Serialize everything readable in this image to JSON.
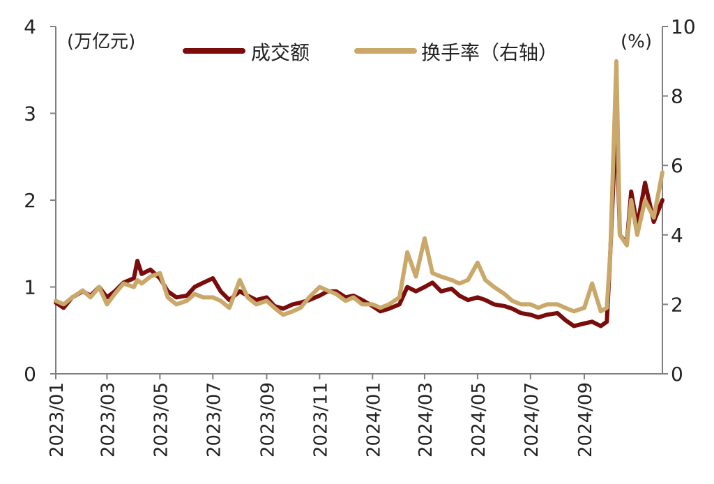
{
  "chart_data": {
    "type": "line",
    "left_unit": "(万亿元)",
    "right_unit": "(%)",
    "y_left_lim": [
      0,
      4
    ],
    "y_right_lim": [
      0,
      10
    ],
    "y_left_ticks": [
      "0",
      "1",
      "2",
      "3",
      "4"
    ],
    "y_right_ticks": [
      "0",
      "2",
      "4",
      "6",
      "8",
      "10"
    ],
    "x_ticks": [
      "2023/01",
      "2023/03",
      "2023/05",
      "2023/07",
      "2023/09",
      "2023/11",
      "2024/01",
      "2024/03",
      "2024/05",
      "2024/07",
      "2024/09"
    ],
    "x_range": [
      "2023-01-01",
      "2024-11-30"
    ],
    "legend_position": "top",
    "grid": false,
    "series": [
      {
        "name": "成交额",
        "axis": "left",
        "color": "#7a0c0c",
        "x": [
          "2023-01-01",
          "2023-01-10",
          "2023-01-20",
          "2023-02-01",
          "2023-02-10",
          "2023-02-20",
          "2023-03-01",
          "2023-03-10",
          "2023-03-20",
          "2023-04-01",
          "2023-04-05",
          "2023-04-10",
          "2023-04-20",
          "2023-05-01",
          "2023-05-10",
          "2023-05-20",
          "2023-06-01",
          "2023-06-10",
          "2023-06-20",
          "2023-07-01",
          "2023-07-10",
          "2023-07-20",
          "2023-08-01",
          "2023-08-10",
          "2023-08-20",
          "2023-09-01",
          "2023-09-10",
          "2023-09-20",
          "2023-10-01",
          "2023-10-10",
          "2023-10-20",
          "2023-11-01",
          "2023-11-10",
          "2023-11-20",
          "2023-12-01",
          "2023-12-10",
          "2023-12-20",
          "2024-01-01",
          "2024-01-10",
          "2024-01-20",
          "2024-02-01",
          "2024-02-10",
          "2024-02-20",
          "2024-03-01",
          "2024-03-10",
          "2024-03-20",
          "2024-04-01",
          "2024-04-10",
          "2024-04-20",
          "2024-05-01",
          "2024-05-10",
          "2024-05-20",
          "2024-06-01",
          "2024-06-10",
          "2024-06-20",
          "2024-07-01",
          "2024-07-10",
          "2024-07-20",
          "2024-08-01",
          "2024-08-10",
          "2024-08-20",
          "2024-09-01",
          "2024-09-10",
          "2024-09-20",
          "2024-09-27",
          "2024-10-01",
          "2024-10-08",
          "2024-10-12",
          "2024-10-20",
          "2024-10-25",
          "2024-11-01",
          "2024-11-10",
          "2024-11-20",
          "2024-11-30"
        ],
        "values": [
          0.82,
          0.76,
          0.88,
          0.95,
          0.9,
          1.0,
          0.88,
          0.95,
          1.05,
          1.1,
          1.3,
          1.15,
          1.2,
          1.1,
          0.95,
          0.88,
          0.9,
          1.0,
          1.05,
          1.1,
          0.95,
          0.85,
          0.95,
          0.9,
          0.85,
          0.88,
          0.78,
          0.75,
          0.8,
          0.82,
          0.85,
          0.9,
          0.95,
          0.95,
          0.88,
          0.9,
          0.85,
          0.78,
          0.72,
          0.75,
          0.8,
          1.0,
          0.95,
          1.0,
          1.05,
          0.95,
          0.98,
          0.9,
          0.85,
          0.88,
          0.85,
          0.8,
          0.78,
          0.75,
          0.7,
          0.68,
          0.65,
          0.68,
          0.7,
          0.62,
          0.55,
          0.58,
          0.6,
          0.55,
          0.6,
          1.4,
          3.0,
          1.6,
          1.5,
          2.1,
          1.7,
          2.2,
          1.75,
          2.0
        ]
      },
      {
        "name": "换手率（右轴）",
        "axis": "right",
        "color": "#c9a86a",
        "x": [
          "2023-01-01",
          "2023-01-10",
          "2023-01-20",
          "2023-02-01",
          "2023-02-10",
          "2023-02-20",
          "2023-03-01",
          "2023-03-10",
          "2023-03-20",
          "2023-04-01",
          "2023-04-05",
          "2023-04-10",
          "2023-04-20",
          "2023-05-01",
          "2023-05-10",
          "2023-05-20",
          "2023-06-01",
          "2023-06-10",
          "2023-06-20",
          "2023-07-01",
          "2023-07-10",
          "2023-07-20",
          "2023-08-01",
          "2023-08-10",
          "2023-08-20",
          "2023-09-01",
          "2023-09-10",
          "2023-09-20",
          "2023-10-01",
          "2023-10-10",
          "2023-10-20",
          "2023-11-01",
          "2023-11-10",
          "2023-11-20",
          "2023-12-01",
          "2023-12-10",
          "2023-12-20",
          "2024-01-01",
          "2024-01-10",
          "2024-01-20",
          "2024-02-01",
          "2024-02-10",
          "2024-02-20",
          "2024-03-01",
          "2024-03-10",
          "2024-03-20",
          "2024-04-01",
          "2024-04-10",
          "2024-04-20",
          "2024-05-01",
          "2024-05-10",
          "2024-05-20",
          "2024-06-01",
          "2024-06-10",
          "2024-06-20",
          "2024-07-01",
          "2024-07-10",
          "2024-07-20",
          "2024-08-01",
          "2024-08-10",
          "2024-08-20",
          "2024-09-01",
          "2024-09-10",
          "2024-09-20",
          "2024-09-27",
          "2024-10-01",
          "2024-10-08",
          "2024-10-12",
          "2024-10-20",
          "2024-10-25",
          "2024-11-01",
          "2024-11-10",
          "2024-11-20",
          "2024-11-30"
        ],
        "values": [
          2.1,
          2.0,
          2.2,
          2.4,
          2.2,
          2.5,
          2.0,
          2.3,
          2.6,
          2.5,
          2.7,
          2.6,
          2.8,
          2.9,
          2.2,
          2.0,
          2.1,
          2.3,
          2.2,
          2.2,
          2.1,
          1.9,
          2.7,
          2.2,
          2.0,
          2.1,
          1.9,
          1.7,
          1.8,
          1.9,
          2.2,
          2.5,
          2.4,
          2.3,
          2.1,
          2.2,
          2.0,
          2.0,
          1.9,
          2.0,
          2.2,
          3.5,
          2.8,
          3.9,
          2.9,
          2.8,
          2.7,
          2.6,
          2.7,
          3.2,
          2.7,
          2.5,
          2.3,
          2.1,
          2.0,
          2.0,
          1.9,
          2.0,
          2.0,
          1.9,
          1.8,
          1.9,
          2.6,
          1.8,
          1.9,
          3.5,
          9.0,
          4.0,
          3.7,
          5.0,
          4.0,
          5.0,
          4.5,
          5.8
        ]
      }
    ]
  }
}
